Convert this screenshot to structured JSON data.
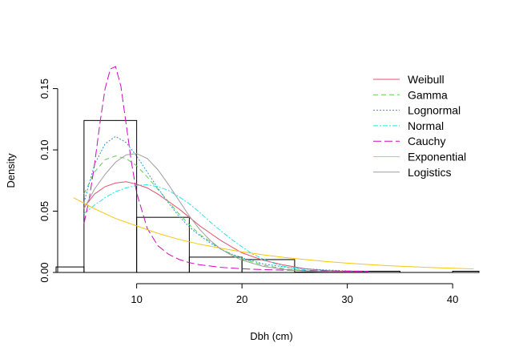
{
  "chart_data": {
    "type": "line",
    "xlabel": "Dbh (cm)",
    "ylabel": "Density",
    "xlim": [
      2.5,
      42.5
    ],
    "ylim": [
      0,
      0.17
    ],
    "x_ticks": [
      10,
      20,
      30,
      40
    ],
    "y_ticks": [
      0.0,
      0.05,
      0.1,
      0.15
    ],
    "x_tick_labels": [
      "10",
      "20",
      "30",
      "40"
    ],
    "y_tick_labels": [
      "0.00",
      "0.05",
      "0.10",
      "0.15"
    ],
    "histogram": {
      "bins": [
        {
          "x0": 0,
          "x1": 5,
          "density": 0.0045
        },
        {
          "x0": 5,
          "x1": 10,
          "density": 0.124
        },
        {
          "x0": 10,
          "x1": 15,
          "density": 0.045
        },
        {
          "x0": 15,
          "x1": 20,
          "density": 0.0125
        },
        {
          "x0": 20,
          "x1": 25,
          "density": 0.0105
        },
        {
          "x0": 25,
          "x1": 30,
          "density": 0.0003
        },
        {
          "x0": 30,
          "x1": 35,
          "density": 0.001
        },
        {
          "x0": 35,
          "x1": 40,
          "density": 0.0
        },
        {
          "x0": 40,
          "x1": 45,
          "density": 0.001
        }
      ]
    },
    "legend_position": "top-right",
    "series": [
      {
        "name": "Weibull",
        "color": "#DF536B",
        "dash": "solid",
        "x": [
          5,
          6,
          7,
          8,
          9,
          10,
          11,
          12,
          13,
          14,
          15,
          16,
          17,
          18,
          19,
          20,
          22,
          24,
          26,
          28,
          30,
          32
        ],
        "y": [
          0.053,
          0.064,
          0.07,
          0.073,
          0.074,
          0.072,
          0.069,
          0.064,
          0.058,
          0.052,
          0.045,
          0.038,
          0.032,
          0.026,
          0.021,
          0.016,
          0.01,
          0.006,
          0.003,
          0.0016,
          0.0008,
          0.0004
        ]
      },
      {
        "name": "Gamma",
        "color": "#61D04F",
        "dash": "6,4",
        "x": [
          5,
          6,
          7,
          8,
          9,
          10,
          11,
          12,
          13,
          14,
          15,
          16,
          17,
          18,
          19,
          20,
          22,
          24,
          26,
          28,
          30,
          32
        ],
        "y": [
          0.064,
          0.082,
          0.092,
          0.095,
          0.093,
          0.087,
          0.078,
          0.068,
          0.058,
          0.048,
          0.039,
          0.031,
          0.025,
          0.019,
          0.015,
          0.011,
          0.006,
          0.003,
          0.0016,
          0.0008,
          0.0004,
          0.0002
        ]
      },
      {
        "name": "Lognormal",
        "color": "#2297E6",
        "dash": "2,2",
        "x": [
          5,
          6,
          7,
          8,
          9,
          10,
          11,
          12,
          13,
          14,
          15,
          16,
          17,
          18,
          19,
          20,
          22,
          24,
          26,
          28,
          30,
          32
        ],
        "y": [
          0.057,
          0.088,
          0.105,
          0.111,
          0.106,
          0.095,
          0.082,
          0.069,
          0.057,
          0.046,
          0.037,
          0.03,
          0.024,
          0.019,
          0.015,
          0.012,
          0.007,
          0.0045,
          0.003,
          0.002,
          0.0013,
          0.0008
        ]
      },
      {
        "name": "Normal",
        "color": "#28E2E5",
        "dash": "6,2,2,2",
        "x": [
          5,
          6,
          7,
          8,
          9,
          10,
          11,
          12,
          13,
          14,
          15,
          16,
          17,
          18,
          19,
          20,
          21,
          22,
          23,
          24,
          26,
          28
        ],
        "y": [
          0.048,
          0.055,
          0.061,
          0.066,
          0.069,
          0.071,
          0.0715,
          0.07,
          0.067,
          0.062,
          0.056,
          0.049,
          0.041,
          0.034,
          0.027,
          0.021,
          0.015,
          0.011,
          0.0075,
          0.005,
          0.002,
          0.0007
        ]
      },
      {
        "name": "Cauchy",
        "color": "#CD0BBC",
        "dash": "10,4",
        "x": [
          5,
          5.5,
          6,
          6.5,
          7,
          7.5,
          8,
          8.5,
          9,
          9.5,
          10,
          11,
          12,
          13,
          14,
          15,
          16,
          18,
          20,
          22,
          25,
          28,
          32
        ],
        "y": [
          0.04,
          0.06,
          0.088,
          0.121,
          0.15,
          0.166,
          0.168,
          0.152,
          0.121,
          0.09,
          0.065,
          0.036,
          0.022,
          0.015,
          0.0107,
          0.008,
          0.0063,
          0.0042,
          0.003,
          0.0023,
          0.0017,
          0.0013,
          0.001
        ]
      },
      {
        "name": "Exponential",
        "color": "#F5C710",
        "dash": "solid",
        "x": [
          4,
          6,
          8,
          10,
          12,
          14,
          16,
          18,
          20,
          22,
          24,
          26,
          28,
          30,
          32,
          34,
          36,
          38,
          40,
          42
        ],
        "y": [
          0.061,
          0.052,
          0.044,
          0.038,
          0.032,
          0.027,
          0.023,
          0.0198,
          0.0169,
          0.0144,
          0.0123,
          0.0105,
          0.0089,
          0.0076,
          0.0065,
          0.0055,
          0.0047,
          0.004,
          0.0034,
          0.0029
        ]
      },
      {
        "name": "Logistics",
        "color": "#9E9E9E",
        "dash": "solid",
        "x": [
          5,
          6,
          7,
          8,
          9,
          10,
          11,
          12,
          13,
          14,
          15,
          16,
          17,
          18,
          19,
          20,
          22,
          24,
          26,
          28,
          30,
          32
        ],
        "y": [
          0.052,
          0.068,
          0.08,
          0.09,
          0.096,
          0.097,
          0.093,
          0.084,
          0.072,
          0.059,
          0.046,
          0.035,
          0.026,
          0.019,
          0.014,
          0.01,
          0.005,
          0.0025,
          0.0012,
          0.0006,
          0.0003,
          0.0001
        ]
      }
    ]
  }
}
